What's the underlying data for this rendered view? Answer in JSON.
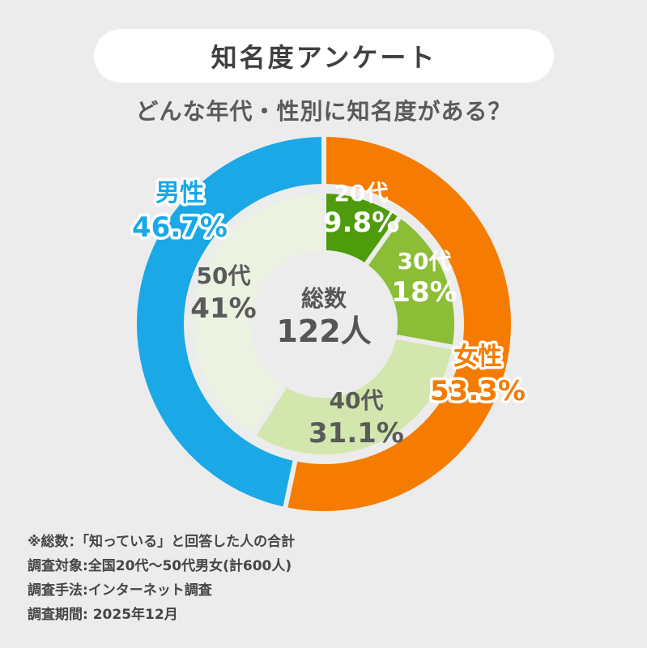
{
  "title": "知名度アンケート",
  "subtitle": "どんな年代・性別に知名度がある？",
  "center": {
    "label": "総数",
    "value": "122人"
  },
  "chart_data": {
    "type": "pie",
    "subtype": "nested-donut",
    "title": "知名度アンケート",
    "subtitle": "どんな年代・性別に知名度がある？",
    "outer": {
      "slices": [
        {
          "name": "女性",
          "value": 53.3,
          "label": "53.3%",
          "color": "#f57c00"
        },
        {
          "name": "男性",
          "value": 46.7,
          "label": "46.7%",
          "color": "#1aa8e6"
        }
      ]
    },
    "inner": {
      "slices": [
        {
          "name": "20代",
          "value": 9.8,
          "label": "9.8%",
          "color": "#4e9c0b"
        },
        {
          "name": "30代",
          "value": 18,
          "label": "18%",
          "color": "#8cbd37"
        },
        {
          "name": "40代",
          "value": 31.1,
          "label": "31.1%",
          "color": "#d2e6ad"
        },
        {
          "name": "50代",
          "value": 41,
          "label": "41%",
          "color": "#ecf2e1"
        }
      ]
    }
  },
  "notes": [
    "※総数：「知っている」と回答した人の合計",
    "調査対象:全国20代～50代男女(計600人)",
    "調査手法:インターネット調査",
    "調査期間: 2025年12月"
  ]
}
